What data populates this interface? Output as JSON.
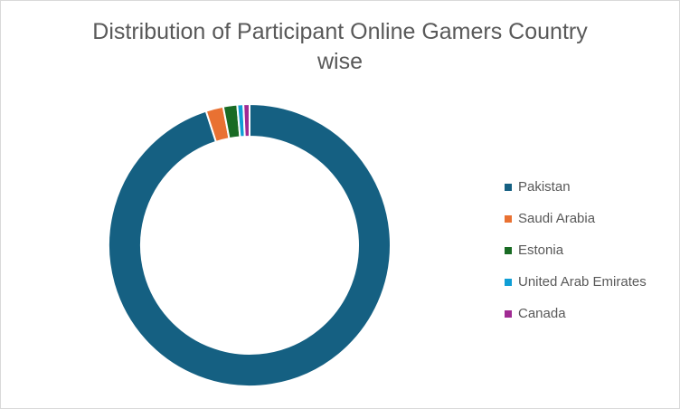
{
  "chart_data": {
    "type": "doughnut",
    "title": "Distribution of Participant Online Gamers Country wise",
    "categories": [
      "Pakistan",
      "Saudi Arabia",
      "Estonia",
      "United Arab Emirates",
      "Canada"
    ],
    "values": [
      95,
      2,
      1.6,
      0.7,
      0.7
    ],
    "colors": [
      "#156082",
      "#e97132",
      "#196b24",
      "#0f9ed5",
      "#a02b93"
    ],
    "legend": "right"
  }
}
